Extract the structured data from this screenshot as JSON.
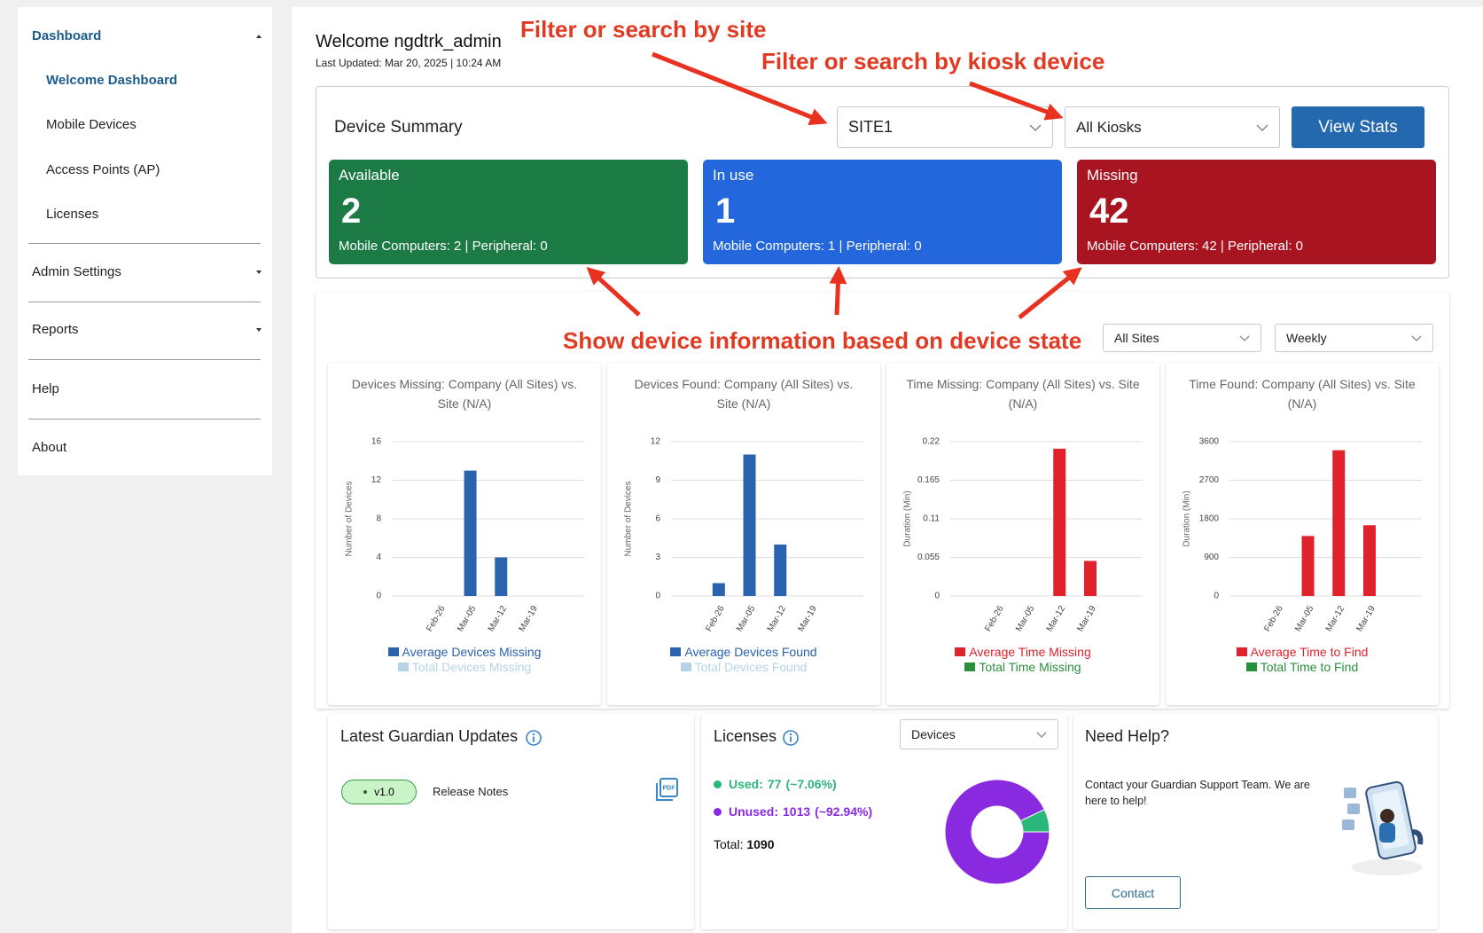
{
  "sidebar": {
    "items": [
      "Dashboard",
      "Welcome Dashboard",
      "Mobile Devices",
      "Access Points (AP)",
      "Licenses",
      "Admin Settings",
      "Reports",
      "Help",
      "About"
    ]
  },
  "header": {
    "title": "Welcome ngdtrk_admin",
    "last_updated": "Last Updated: Mar 20, 2025 | 10:24 AM"
  },
  "annotations": [
    "Filter or search by site",
    "Filter or search by kiosk device",
    "Show device information based on device state"
  ],
  "device_summary": {
    "title": "Device Summary",
    "site_select": "SITE1",
    "kiosk_select": "All Kiosks",
    "button": "View Stats",
    "cards": [
      {
        "label": "Available",
        "value": 2,
        "detail": "Mobile Computers: 2 | Peripheral: 0",
        "color": "#1c7a45"
      },
      {
        "label": "In use",
        "value": 1,
        "detail": "Mobile Computers: 1 | Peripheral: 0",
        "color": "#2467dc"
      },
      {
        "label": "Missing",
        "value": 42,
        "detail": "Mobile Computers: 42 | Peripheral: 0",
        "color": "#a8141f"
      }
    ]
  },
  "stats": {
    "site_select": "All Sites",
    "period_select": "Weekly",
    "charts": [
      {
        "type": "bar",
        "title": "Devices Missing: Company (All Sites) vs. Site (N/A)",
        "y_label": "Number of Devices",
        "categories": [
          "Feb-26",
          "Mar-05",
          "Mar-12",
          "Mar-19"
        ],
        "ylim": [
          0,
          16
        ],
        "yticks": [
          0,
          4,
          8,
          12,
          16
        ],
        "grid": true,
        "series": [
          {
            "name": "Average Devices Missing",
            "color": "#2a62ae",
            "values": [
              0,
              13,
              4,
              0
            ]
          },
          {
            "name": "Total Devices Missing",
            "color": "#a9cde3",
            "hidden": true
          }
        ]
      },
      {
        "type": "bar",
        "title": "Devices Found: Company (All Sites) vs. Site (N/A)",
        "y_label": "Number of Devices",
        "categories": [
          "Feb-26",
          "Mar-05",
          "Mar-12",
          "Mar-19"
        ],
        "ylim": [
          0,
          12
        ],
        "yticks": [
          0,
          3,
          6,
          9,
          12
        ],
        "grid": true,
        "series": [
          {
            "name": "Average Devices Found",
            "color": "#2a62ae",
            "values": [
              1,
              11,
              4,
              0
            ]
          },
          {
            "name": "Total Devices Found",
            "color": "#a9cde3",
            "hidden": true
          }
        ]
      },
      {
        "type": "bar",
        "title": "Time Missing: Company (All Sites) vs. Site (N/A)",
        "y_label": "Duration (Min)",
        "categories": [
          "Feb-26",
          "Mar-05",
          "Mar-12",
          "Mar-19"
        ],
        "ylim": [
          0,
          0.22
        ],
        "yticks": [
          0,
          0.055,
          0.11,
          0.165,
          0.22
        ],
        "grid": true,
        "series": [
          {
            "name": "Average Time Missing",
            "color": "#e0222d",
            "values": [
              0,
              0,
              0.21,
              0.05
            ]
          },
          {
            "name": "Total Time Missing",
            "color": "#2a8f3a",
            "values": [
              0,
              0,
              0,
              0
            ]
          }
        ]
      },
      {
        "type": "bar",
        "title": "Time Found: Company (All Sites) vs. Site (N/A)",
        "y_label": "Duration (Min)",
        "categories": [
          "Feb-26",
          "Mar-05",
          "Mar-12",
          "Mar-19"
        ],
        "ylim": [
          0,
          3600
        ],
        "yticks": [
          0,
          900,
          1800,
          2700,
          3600
        ],
        "grid": true,
        "series": [
          {
            "name": "Average Time to Find",
            "color": "#e0222d",
            "values": [
              0,
              1400,
              3400,
              1650
            ]
          },
          {
            "name": "Total Time to Find",
            "color": "#2a8f3a",
            "values": [
              0,
              0,
              0,
              0
            ]
          }
        ]
      }
    ]
  },
  "updates": {
    "title": "Latest Guardian Updates",
    "version": "v1.0",
    "link": "Release Notes"
  },
  "licenses": {
    "title": "Licenses",
    "select": "Devices",
    "type": "pie",
    "items": [
      {
        "label": "Used:",
        "value": 77,
        "pct": "(~7.06%)",
        "color": "#2bb67a"
      },
      {
        "label": "Unused:",
        "value": 1013,
        "pct": "(~92.94%)",
        "color": "#8a2ae0"
      }
    ],
    "total_label": "Total:",
    "total": 1090
  },
  "help": {
    "title": "Need Help?",
    "text": "Contact your Guardian Support Team. We are here to help!",
    "button": "Contact"
  }
}
